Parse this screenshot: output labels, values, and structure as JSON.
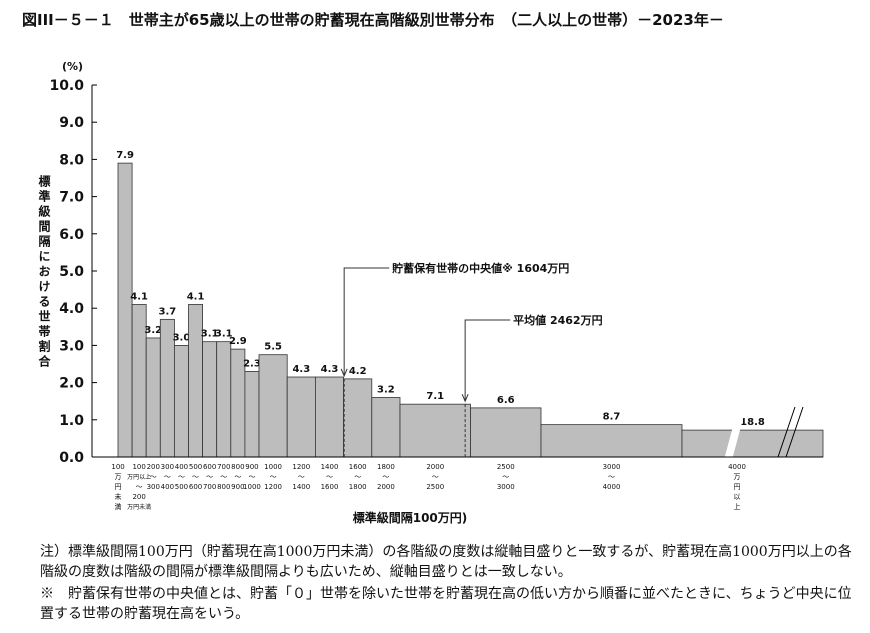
{
  "chart_data": {
    "type": "histogram",
    "title": "図III－５－１　世帯主が65歳以上の世帯の貯蓄現在高階級別世帯分布　（二人以上の世帯）－2023年－",
    "y_unit": "(%)",
    "y_label": "標準級間隔における世帯割合",
    "x_label": "標準級間隔100万円)",
    "bins": [
      0,
      100,
      200,
      300,
      400,
      500,
      600,
      700,
      800,
      900,
      1000,
      1200,
      1400,
      1600,
      1800,
      2000,
      2500,
      3000,
      4000,
      5000
    ],
    "categories": [
      [
        "100",
        "万",
        "円",
        "未",
        "満"
      ],
      [
        "100",
        "万円以上",
        "～",
        "200",
        "万円未満"
      ],
      [
        "200",
        "～",
        "300"
      ],
      [
        "300",
        "～",
        "400"
      ],
      [
        "400",
        "～",
        "500"
      ],
      [
        "500",
        "～",
        "600"
      ],
      [
        "600",
        "～",
        "700"
      ],
      [
        "700",
        "～",
        "800"
      ],
      [
        "800",
        "～",
        "900"
      ],
      [
        "900",
        "～",
        "1000"
      ],
      [
        "1000",
        "～",
        "1200"
      ],
      [
        "1200",
        "～",
        "1400"
      ],
      [
        "1400",
        "～",
        "1600"
      ],
      [
        "1600",
        "～",
        "1800"
      ],
      [
        "1800",
        "～",
        "2000"
      ],
      [
        "2000",
        "～",
        "2500"
      ],
      [
        "2500",
        "～",
        "3000"
      ],
      [
        "3000",
        "～",
        "4000"
      ],
      [
        "4000",
        "万",
        "円",
        "以",
        "上"
      ]
    ],
    "values": [
      7.9,
      4.1,
      3.2,
      3.7,
      3.0,
      4.1,
      3.1,
      3.1,
      2.9,
      2.3,
      5.5,
      4.3,
      4.3,
      4.2,
      3.2,
      7.1,
      6.6,
      8.7,
      18.8
    ],
    "value_labels": [
      "7.9",
      "4.1",
      "3.2",
      "3.7",
      "3.0",
      "4.1",
      "3.1",
      "3.1",
      "2.9",
      "2.3",
      "5.5",
      "4.3",
      "4.3",
      "4.2",
      "3.2",
      "7.1",
      "6.6",
      "8.7",
      "18.8"
    ],
    "color": "#bdbdbd",
    "ylim": [
      0,
      10
    ],
    "yticks": [
      {
        "value": 0,
        "label": "0.0"
      },
      {
        "value": 1,
        "label": "1.0"
      },
      {
        "value": 2,
        "label": "2.0"
      },
      {
        "value": 3,
        "label": "3.0"
      },
      {
        "value": 4,
        "label": "4.0"
      },
      {
        "value": 5,
        "label": "5.0"
      },
      {
        "value": 6,
        "label": "6.0"
      },
      {
        "value": 7,
        "label": "7.0"
      },
      {
        "value": 8,
        "label": "8.0"
      },
      {
        "value": 9,
        "label": "9.0"
      },
      {
        "value": 10,
        "label": "10.0"
      }
    ],
    "annotations": [
      {
        "text": "貯蓄保有世帯の中央値※  1604万円",
        "x": 1604
      },
      {
        "text": "平均値  2462万円",
        "x": 2462
      }
    ],
    "notes": [
      "注）標準級間隔100万円（貯蓄現在高1000万円未満）の各階級の度数は縦軸目盛りと一致するが、貯蓄現在高1000万円以上の各階級の度数は階級の間隔が標準級間隔よりも広いため、縦軸目盛りとは一致しない。",
      "※　貯蓄保有世帯の中央値とは、貯蓄「０」世帯を除いた世帯を貯蓄現在高の低い方から順番に並べたときに、ちょうど中央に位置する世帯の貯蓄現在高をいう。"
    ]
  }
}
